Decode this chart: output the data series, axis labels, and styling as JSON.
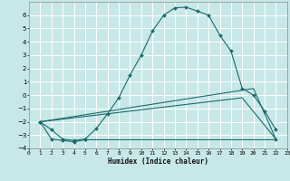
{
  "xlabel": "Humidex (Indice chaleur)",
  "ylabel": "",
  "bg_color": "#c8e8e8",
  "grid_color": "#ffffff",
  "line_color": "#1a6b6b",
  "marker_color": "#1a6b6b",
  "xlim": [
    0,
    23
  ],
  "ylim": [
    -4,
    7
  ],
  "xticks": [
    0,
    1,
    2,
    3,
    4,
    5,
    6,
    7,
    8,
    9,
    10,
    11,
    12,
    13,
    14,
    15,
    16,
    17,
    18,
    19,
    20,
    21,
    22,
    23
  ],
  "yticks": [
    -4,
    -3,
    -2,
    -1,
    0,
    1,
    2,
    3,
    4,
    5,
    6
  ],
  "line1_x": [
    1,
    2,
    3,
    4,
    5,
    6,
    7,
    8,
    9,
    10,
    11,
    12,
    13,
    14,
    15,
    16,
    17,
    18,
    19,
    20,
    21,
    22
  ],
  "line1_y": [
    -2.0,
    -2.6,
    -3.3,
    -3.4,
    -3.3,
    -2.5,
    -1.4,
    -0.2,
    1.5,
    3.0,
    4.8,
    6.0,
    6.55,
    6.6,
    6.3,
    6.0,
    4.5,
    3.3,
    0.5,
    0.0,
    -1.2,
    -2.6
  ],
  "line2_x": [
    1,
    2,
    3,
    4,
    5,
    22
  ],
  "line2_y": [
    -2.0,
    -3.3,
    -3.4,
    -3.5,
    -3.35,
    -3.35
  ],
  "line3_x": [
    1,
    20,
    22
  ],
  "line3_y": [
    -2.0,
    0.5,
    -3.3
  ],
  "line4_x": [
    1,
    19,
    22
  ],
  "line4_y": [
    -2.0,
    -0.2,
    -3.3
  ]
}
